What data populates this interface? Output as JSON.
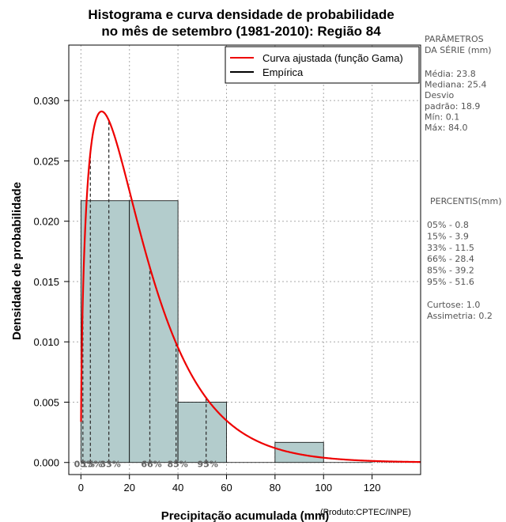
{
  "chart_data": {
    "type": "bar",
    "title_lines": [
      "Histograma e curva densidade de probabilidade",
      "no mês de setembro (1981-2010): Região 84"
    ],
    "xlabel": "Precipitação acumulada (mm)",
    "ylabel": "Densidade de probabilidade",
    "credit": "(Produto:CPTEC/INPE)",
    "xlim": [
      -5,
      140
    ],
    "ylim": [
      -0.001,
      0.0346
    ],
    "x_ticks": [
      0,
      20,
      40,
      60,
      80,
      100,
      120
    ],
    "x_tick_labels": [
      "0",
      "20",
      "40",
      "60",
      "80",
      "100",
      "120"
    ],
    "y_ticks": [
      0.0,
      0.005,
      0.01,
      0.015,
      0.02,
      0.025,
      0.03
    ],
    "y_tick_labels": [
      "0.000",
      "0.005",
      "0.010",
      "0.015",
      "0.020",
      "0.025",
      "0.030"
    ],
    "grid": true,
    "bin_edges": [
      0,
      20,
      40,
      60,
      80,
      100,
      120
    ],
    "bin_values": [
      0.0217,
      0.0217,
      0.005,
      0.0,
      0.00167,
      0.0
    ],
    "bar_color": "#b3cccc",
    "curve": {
      "name": "Curva ajustada (função Gama)",
      "color": "#ee0000",
      "shape": 1.52,
      "rate": 0.061,
      "x_range": [
        0.05,
        140
      ]
    },
    "legend": {
      "placement": "top-right",
      "entries": [
        {
          "label": "Curva ajustada (função Gama)",
          "color": "#ee0000"
        },
        {
          "label": "Empírica",
          "color": "#000000"
        }
      ]
    },
    "percentile_lines": [
      {
        "label": "05%",
        "value": 0.8
      },
      {
        "label": "15%",
        "value": 3.9
      },
      {
        "label": "33%",
        "value": 11.5
      },
      {
        "label": "66%",
        "value": 28.4
      },
      {
        "label": "85%",
        "value": 39.2
      },
      {
        "label": "95%",
        "value": 51.6
      }
    ],
    "side_panel": {
      "params_header": [
        "PARÂMETROS",
        " DA SÉRIE (mm)"
      ],
      "params": [
        "Média:  23.8",
        "Mediana:  25.4",
        "Desvio",
        "padrão:  18.9",
        "Mín:  0.1",
        "Máx:  84.0"
      ],
      "percentis_header": "PERCENTIS(mm)",
      "percentis": [
        "05% -  0.8",
        "15% -  3.9",
        "33% -  11.5",
        "66% -  28.4",
        "85% -  39.2",
        "95% -  51.6"
      ],
      "stats": [
        "Curtose:  1.0",
        "Assimetria:  0.2"
      ]
    }
  }
}
